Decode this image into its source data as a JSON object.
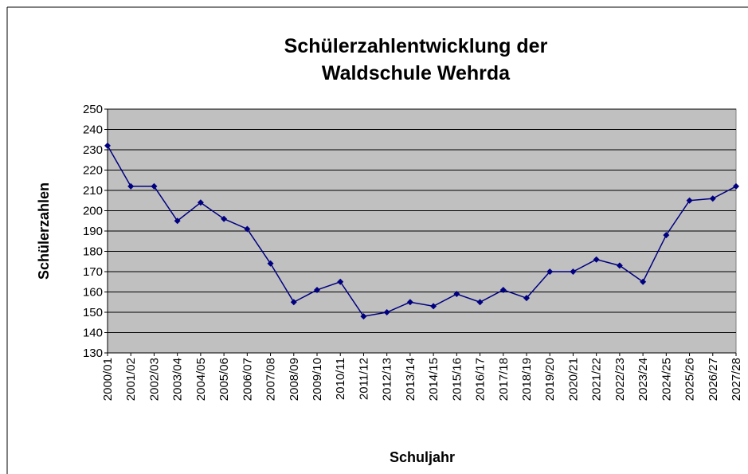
{
  "chart_data": {
    "type": "line",
    "title": [
      "Schülerzahlentwicklung der",
      "Waldschule Wehrda"
    ],
    "x_label": "Schuljahr",
    "y_label": "Schülerzahlen",
    "categories": [
      "2000/01",
      "2001/02",
      "2002/03",
      "2003/04",
      "2004/05",
      "2005/06",
      "2006/07",
      "2007/08",
      "2008/09",
      "2009/10",
      "2010/11",
      "2011/12",
      "2012/13",
      "2013/14",
      "2014/15",
      "2015/16",
      "2016/17",
      "2017/18",
      "2018/19",
      "2019/20",
      "2020/21",
      "2021/22",
      "2022/23",
      "2023/24",
      "2024/25",
      "2025/26",
      "2026/27",
      "2027/28"
    ],
    "series": [
      {
        "name": "Schülerzahlen",
        "color": "#000080",
        "values": [
          232,
          212,
          212,
          195,
          204,
          196,
          191,
          174,
          155,
          161,
          165,
          148,
          150,
          155,
          153,
          159,
          155,
          161,
          157,
          170,
          170,
          176,
          173,
          165,
          188,
          205,
          206,
          212
        ]
      }
    ],
    "ylim": [
      130,
      250
    ],
    "yticks": [
      130,
      140,
      150,
      160,
      170,
      180,
      190,
      200,
      210,
      220,
      230,
      240,
      250
    ],
    "grid": true,
    "plot_background": "#c0c0c0"
  }
}
